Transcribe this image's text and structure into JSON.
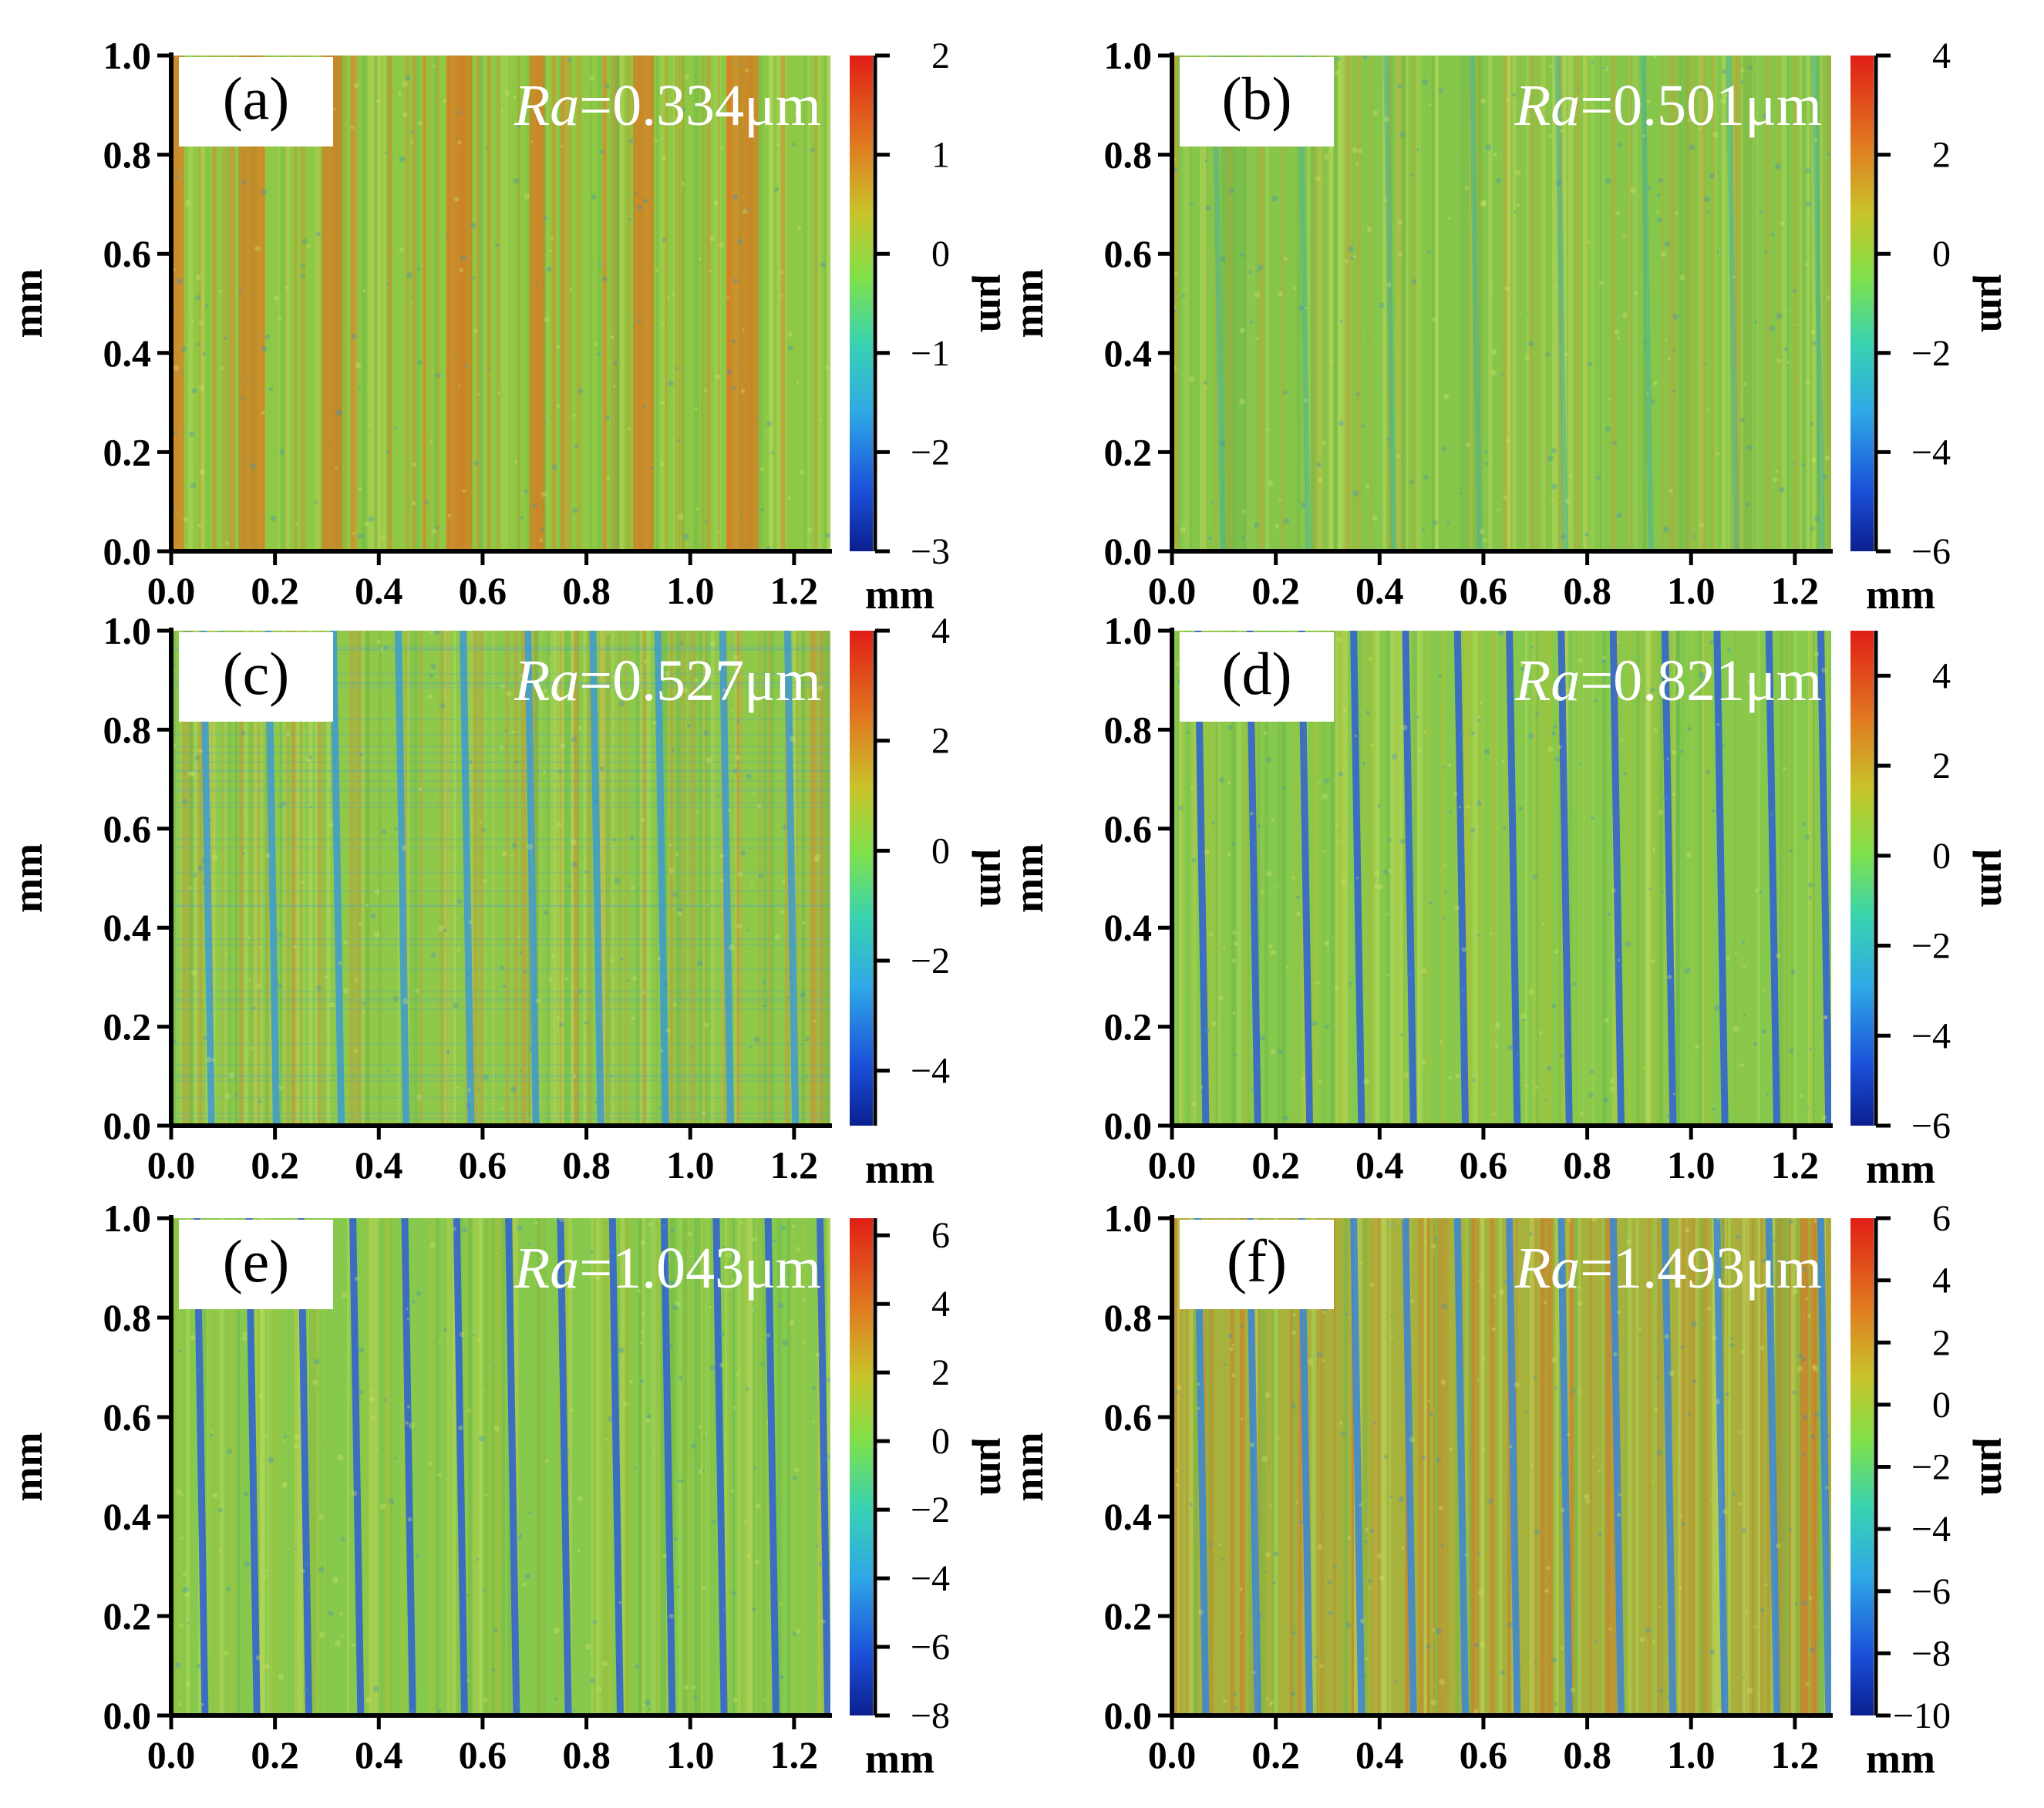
{
  "figure": {
    "type": "surface-topography-panels"
  },
  "chart_data": [
    {
      "type": "heatmap",
      "panel_label": "(a)",
      "ra_symbol": "Ra",
      "ra_value": "=0.334μm",
      "xlabel": "mm",
      "ylabel": "mm",
      "xlim": [
        0.0,
        1.27
      ],
      "ylim": [
        0.0,
        1.0
      ],
      "x_ticks": [
        "0.0",
        "0.2",
        "0.4",
        "0.6",
        "0.8",
        "1.0",
        "1.2"
      ],
      "y_ticks": [
        "0.0",
        "0.2",
        "0.4",
        "0.6",
        "0.8",
        "1.0"
      ],
      "colorbar_label": "μm",
      "colorbar_range": [
        -3,
        2
      ],
      "colorbar_ticks": [
        "2",
        "1",
        "0",
        "-1",
        "-2",
        "-3"
      ],
      "groove_spacing_mm": 0.0,
      "texture": "orange-streaks"
    },
    {
      "type": "heatmap",
      "panel_label": "(b)",
      "ra_symbol": "Ra",
      "ra_value": "=0.501μm",
      "xlabel": "mm",
      "ylabel": "mm",
      "xlim": [
        0.0,
        1.27
      ],
      "ylim": [
        0.0,
        1.0
      ],
      "x_ticks": [
        "0.0",
        "0.2",
        "0.4",
        "0.6",
        "0.8",
        "1.0",
        "1.2"
      ],
      "y_ticks": [
        "0.0",
        "0.2",
        "0.4",
        "0.6",
        "0.8",
        "1.0"
      ],
      "colorbar_label": "μm",
      "colorbar_range": [
        -6,
        4
      ],
      "colorbar_ticks": [
        "4",
        "2",
        "0",
        "-2",
        "-4",
        "-6"
      ],
      "groove_spacing_mm": 0.165,
      "texture": "faint-grooves"
    },
    {
      "type": "heatmap",
      "panel_label": "(c)",
      "ra_symbol": "Ra",
      "ra_value": "=0.527μm",
      "xlabel": "mm",
      "ylabel": "mm",
      "xlim": [
        0.0,
        1.27
      ],
      "ylim": [
        0.0,
        1.0
      ],
      "x_ticks": [
        "0.0",
        "0.2",
        "0.4",
        "0.6",
        "0.8",
        "1.0",
        "1.2"
      ],
      "y_ticks": [
        "0.0",
        "0.2",
        "0.4",
        "0.6",
        "0.8",
        "1.0"
      ],
      "colorbar_label": "μm",
      "colorbar_range": [
        -5,
        4
      ],
      "colorbar_ticks": [
        "4",
        "2",
        "0",
        "-2",
        "-4"
      ],
      "groove_spacing_mm": 0.125,
      "texture": "grid-grooves"
    },
    {
      "type": "heatmap",
      "panel_label": "(d)",
      "ra_symbol": "Ra",
      "ra_value": "=0.821μm",
      "xlabel": "mm",
      "ylabel": "mm",
      "xlim": [
        0.0,
        1.27
      ],
      "ylim": [
        0.0,
        1.0
      ],
      "x_ticks": [
        "0.0",
        "0.2",
        "0.4",
        "0.6",
        "0.8",
        "1.0",
        "1.2"
      ],
      "y_ticks": [
        "0.0",
        "0.2",
        "0.4",
        "0.6",
        "0.8",
        "1.0"
      ],
      "colorbar_label": "μm",
      "colorbar_range": [
        -6,
        5
      ],
      "colorbar_ticks": [
        "4",
        "2",
        "0",
        "-2",
        "-4",
        "-6"
      ],
      "groove_spacing_mm": 0.1,
      "texture": "blue-grooves"
    },
    {
      "type": "heatmap",
      "panel_label": "(e)",
      "ra_symbol": "Ra",
      "ra_value": "=1.043μm",
      "xlabel": "mm",
      "ylabel": "mm",
      "xlim": [
        0.0,
        1.27
      ],
      "ylim": [
        0.0,
        1.0
      ],
      "x_ticks": [
        "0.0",
        "0.2",
        "0.4",
        "0.6",
        "0.8",
        "1.0",
        "1.2"
      ],
      "y_ticks": [
        "0.0",
        "0.2",
        "0.4",
        "0.6",
        "0.8",
        "1.0"
      ],
      "colorbar_label": "μm",
      "colorbar_range": [
        -8,
        6.5
      ],
      "colorbar_ticks": [
        "6",
        "4",
        "2",
        "0",
        "-2",
        "-4",
        "-6",
        "-8"
      ],
      "groove_spacing_mm": 0.1,
      "texture": "blue-grooves"
    },
    {
      "type": "heatmap",
      "panel_label": "(f)",
      "ra_symbol": "Ra",
      "ra_value": "=1.493μm",
      "xlabel": "mm",
      "ylabel": "mm",
      "xlim": [
        0.0,
        1.27
      ],
      "ylim": [
        0.0,
        1.0
      ],
      "x_ticks": [
        "0.0",
        "0.2",
        "0.4",
        "0.6",
        "0.8",
        "1.0",
        "1.2"
      ],
      "y_ticks": [
        "0.0",
        "0.2",
        "0.4",
        "0.6",
        "0.8",
        "1.0"
      ],
      "colorbar_label": "μm",
      "colorbar_range": [
        -10,
        6
      ],
      "colorbar_ticks": [
        "6",
        "4",
        "2",
        "0",
        "-2",
        "-4",
        "-6",
        "-8",
        "-10"
      ],
      "groove_spacing_mm": 0.1,
      "texture": "orange-grooves"
    }
  ]
}
